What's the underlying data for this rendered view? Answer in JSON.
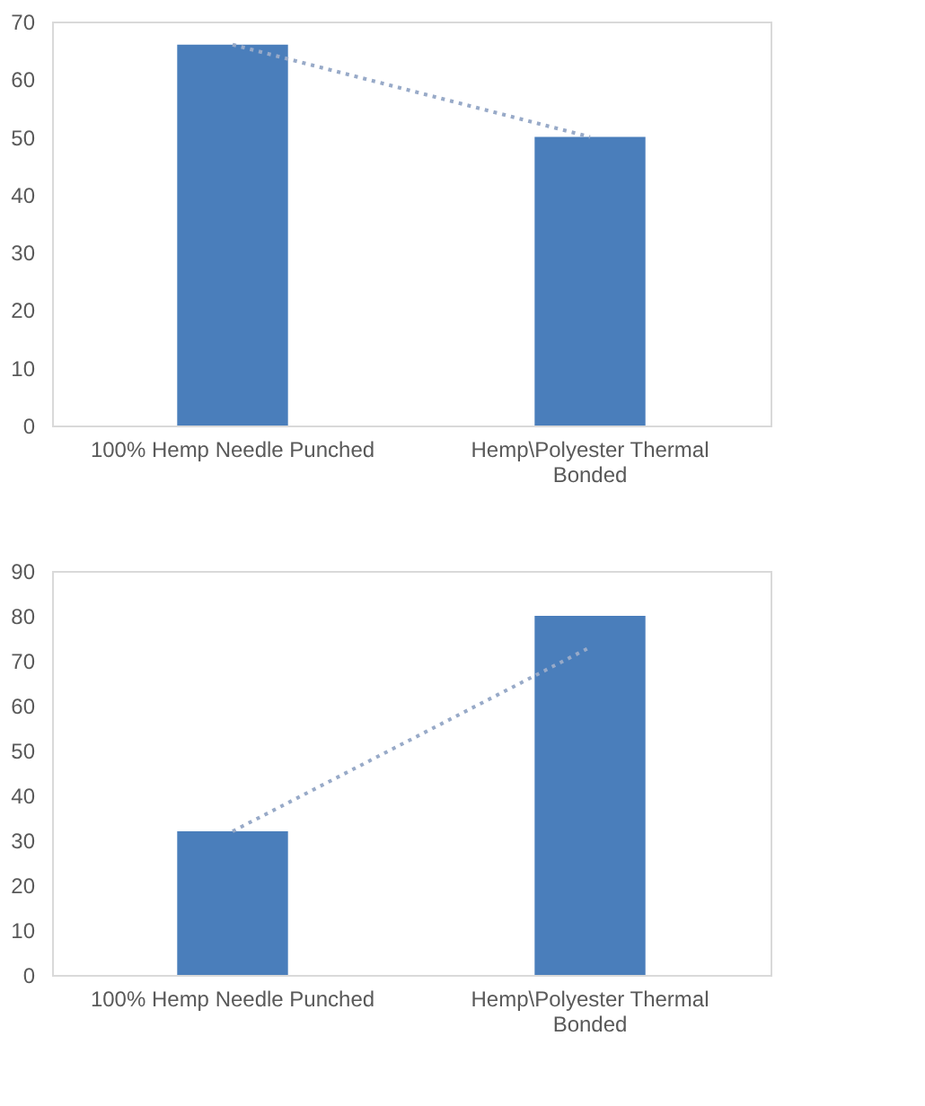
{
  "chart_data": [
    {
      "type": "bar",
      "categories": [
        "100% Hemp Needle Punched",
        "Hemp\\Polyester Thermal Bonded"
      ],
      "ylim": [
        0,
        70
      ],
      "yticks": [
        0,
        10,
        20,
        30,
        40,
        50,
        60,
        70
      ],
      "grid": false,
      "series": [
        {
          "color": "#4a7ebb",
          "values": [
            66,
            50
          ]
        },
        {
          "type": "line",
          "color": "#98aac8",
          "line_style": "dotted",
          "values": [
            66,
            50
          ]
        }
      ]
    },
    {
      "type": "bar",
      "categories": [
        "100% Hemp Needle Punched",
        "Hemp\\Polyester Thermal Bonded"
      ],
      "ylim": [
        0,
        90
      ],
      "yticks": [
        0,
        10,
        20,
        30,
        40,
        50,
        60,
        70,
        80,
        90
      ],
      "grid": false,
      "series": [
        {
          "color": "#4a7ebb",
          "values": [
            32,
            80
          ]
        },
        {
          "type": "line",
          "color": "#98aac8",
          "line_style": "dotted",
          "values": [
            32,
            73
          ]
        }
      ]
    }
  ]
}
